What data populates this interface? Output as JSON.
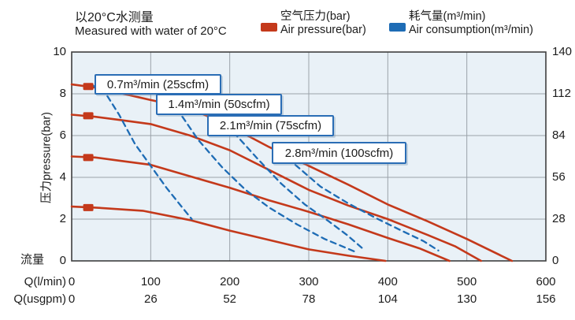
{
  "header": {
    "title_zh": "以20°C水测量",
    "title_en": "Measured with water of 20°C"
  },
  "legend": {
    "air_pressure": {
      "label_zh": "空气压力(bar)",
      "label_en": "Air pressure(bar)",
      "color": "#c4391b"
    },
    "air_consumption": {
      "label_zh": "耗气量(m³/min)",
      "label_en": "Air consumption(m³/min)",
      "color": "#1e6cb5"
    }
  },
  "chart_data": {
    "type": "line",
    "grid": true,
    "plot_bg": "#e9f1f7",
    "grid_color": "#9aa2aa",
    "border_color": "#3f3f3f",
    "x_axis": {
      "row1_label": "Q(l/min)",
      "row2_label": "Q(usgpm)",
      "ticks_lmin": [
        0,
        100,
        200,
        300,
        400,
        500,
        600
      ],
      "ticks_usgpm": [
        0,
        26,
        52,
        78,
        104,
        130,
        156
      ],
      "range_lmin": [
        0,
        600
      ]
    },
    "y_left": {
      "title": "压力pressure(bar)",
      "flow_label": "流量",
      "ticks": [
        10,
        8,
        6,
        4,
        2,
        0
      ],
      "range": [
        0,
        10
      ]
    },
    "y_right": {
      "ticks": [
        140,
        112,
        84,
        56,
        28,
        0
      ],
      "range": [
        0,
        140
      ]
    },
    "series": [
      {
        "name": "air-pressure-8.4bar",
        "group": "air_pressure",
        "style": "solid",
        "color": "#c4391b",
        "points": [
          [
            0,
            8.45
          ],
          [
            30,
            8.3
          ],
          [
            60,
            8.05
          ],
          [
            100,
            7.7
          ],
          [
            150,
            7.3
          ],
          [
            200,
            6.45
          ],
          [
            250,
            5.45
          ],
          [
            300,
            4.55
          ],
          [
            350,
            3.65
          ],
          [
            400,
            2.7
          ],
          [
            450,
            1.9
          ],
          [
            500,
            1.05
          ],
          [
            557,
            0
          ]
        ]
      },
      {
        "name": "air-pressure-7bar",
        "group": "air_pressure",
        "style": "solid",
        "color": "#c4391b",
        "points": [
          [
            0,
            7.0
          ],
          [
            30,
            6.9
          ],
          [
            60,
            6.75
          ],
          [
            100,
            6.55
          ],
          [
            150,
            6.0
          ],
          [
            200,
            5.3
          ],
          [
            250,
            4.35
          ],
          [
            300,
            3.4
          ],
          [
            350,
            2.65
          ],
          [
            400,
            2.0
          ],
          [
            450,
            1.25
          ],
          [
            485,
            0.7
          ],
          [
            518,
            0
          ]
        ]
      },
      {
        "name": "air-pressure-5bar",
        "group": "air_pressure",
        "style": "solid",
        "color": "#c4391b",
        "points": [
          [
            0,
            5.0
          ],
          [
            30,
            4.95
          ],
          [
            60,
            4.8
          ],
          [
            100,
            4.6
          ],
          [
            150,
            4.05
          ],
          [
            200,
            3.5
          ],
          [
            250,
            2.9
          ],
          [
            300,
            2.35
          ],
          [
            350,
            1.75
          ],
          [
            400,
            1.1
          ],
          [
            440,
            0.6
          ],
          [
            478,
            0
          ]
        ]
      },
      {
        "name": "air-pressure-2.6bar",
        "group": "air_pressure",
        "style": "solid",
        "color": "#c4391b",
        "points": [
          [
            0,
            2.6
          ],
          [
            30,
            2.55
          ],
          [
            90,
            2.4
          ],
          [
            150,
            1.95
          ],
          [
            200,
            1.45
          ],
          [
            250,
            1.0
          ],
          [
            300,
            0.55
          ],
          [
            350,
            0.25
          ],
          [
            397,
            0
          ]
        ]
      },
      {
        "name": "consumption-0.7m3min",
        "group": "air_consumption",
        "style": "dashed",
        "color": "#1e6cb5",
        "points": [
          [
            25,
            8.45
          ],
          [
            45,
            7.9
          ],
          [
            60,
            7.0
          ],
          [
            80,
            5.6
          ],
          [
            100,
            4.55
          ],
          [
            120,
            3.5
          ],
          [
            140,
            2.55
          ],
          [
            152,
            2.0
          ]
        ]
      },
      {
        "name": "consumption-1.4m3min",
        "group": "air_consumption",
        "style": "dashed",
        "color": "#1e6cb5",
        "points": [
          [
            133,
            7.3
          ],
          [
            160,
            5.8
          ],
          [
            190,
            4.5
          ],
          [
            220,
            3.4
          ],
          [
            250,
            2.55
          ],
          [
            285,
            1.75
          ],
          [
            320,
            1.05
          ],
          [
            358,
            0.45
          ]
        ]
      },
      {
        "name": "consumption-2.1m3min",
        "group": "air_consumption",
        "style": "dashed",
        "color": "#1e6cb5",
        "points": [
          [
            205,
            6.15
          ],
          [
            235,
            4.9
          ],
          [
            265,
            3.7
          ],
          [
            295,
            2.7
          ],
          [
            325,
            1.9
          ],
          [
            348,
            1.25
          ],
          [
            368,
            0.6
          ]
        ]
      },
      {
        "name": "consumption-2.8m3min",
        "group": "air_consumption",
        "style": "dashed",
        "color": "#1e6cb5",
        "points": [
          [
            283,
            4.6
          ],
          [
            315,
            3.55
          ],
          [
            350,
            2.75
          ],
          [
            385,
            2.05
          ],
          [
            420,
            1.4
          ],
          [
            445,
            0.95
          ],
          [
            464,
            0.5
          ]
        ]
      }
    ],
    "markers": [
      {
        "q": 21,
        "bar": 8.35
      },
      {
        "q": 21,
        "bar": 6.95
      },
      {
        "q": 21,
        "bar": 4.95
      },
      {
        "q": 21,
        "bar": 2.55
      }
    ],
    "annotations": [
      {
        "label": "0.7m³/min (25scfm)"
      },
      {
        "label": "1.4m³/min (50scfm)"
      },
      {
        "label": "2.1m³/min (75scfm)"
      },
      {
        "label": "2.8m³/min (100scfm)"
      }
    ]
  }
}
